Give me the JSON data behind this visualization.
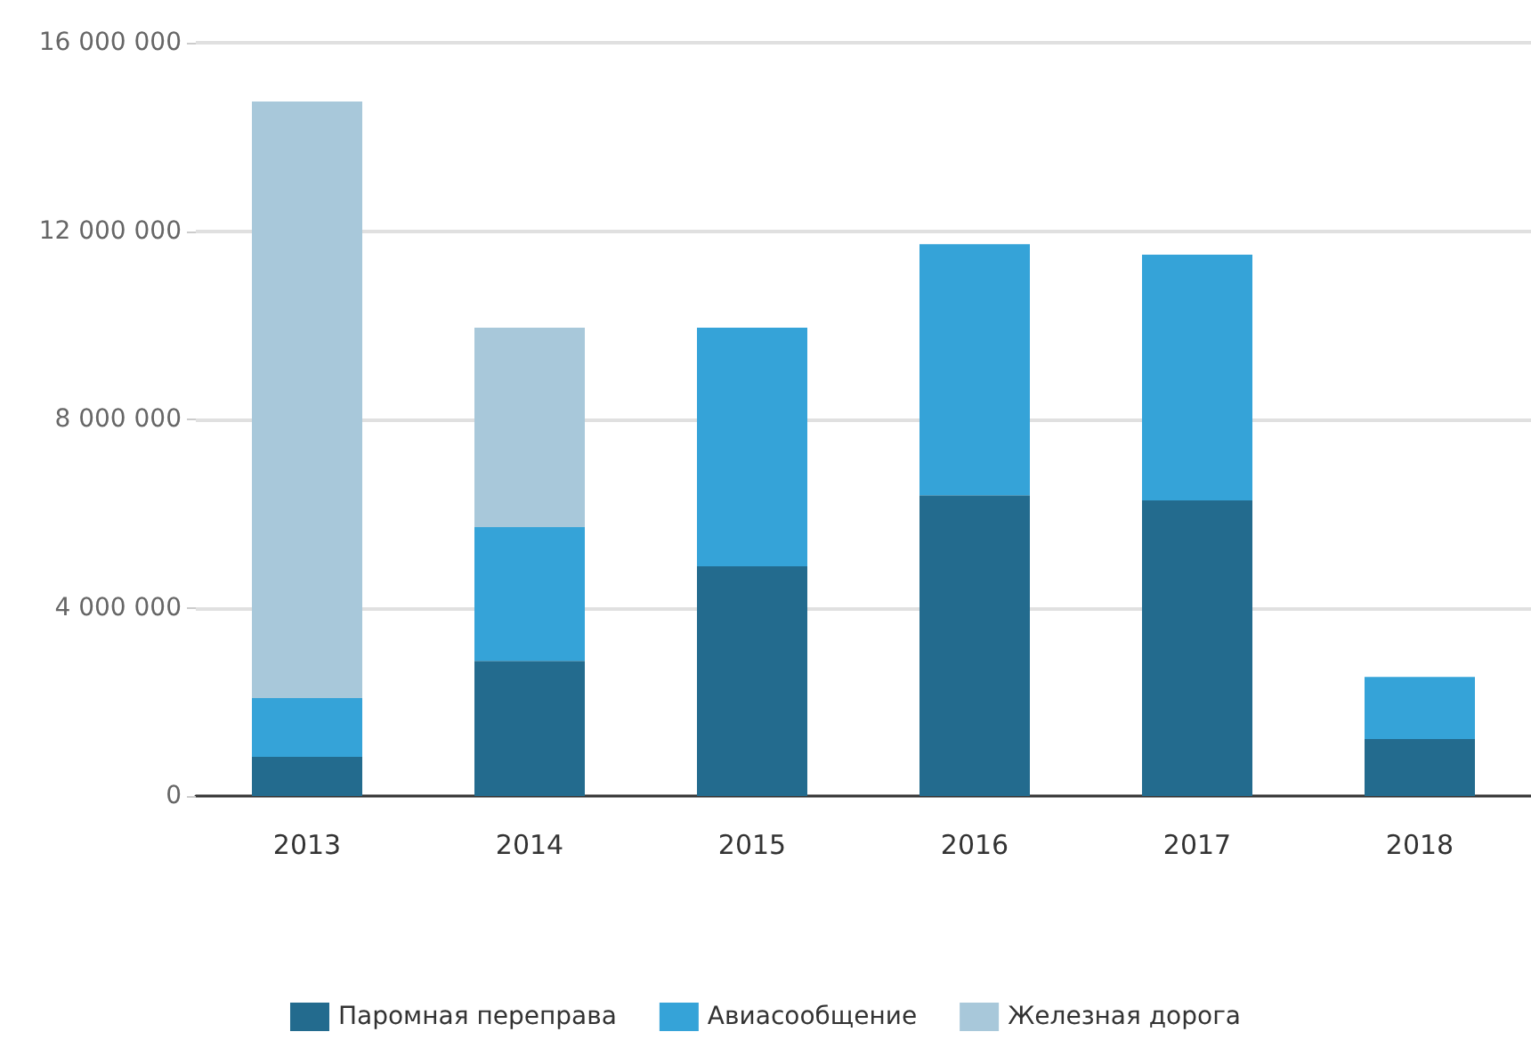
{
  "chart_data": {
    "type": "bar",
    "stacked": true,
    "categories": [
      "2013",
      "2014",
      "2015",
      "2016",
      "2017",
      "2018"
    ],
    "series": [
      {
        "name": "Паромная переправа",
        "color": "#236b8e",
        "values": [
          830000,
          2870000,
          4880000,
          6390000,
          6280000,
          1210000
        ]
      },
      {
        "name": "Авиасообщение",
        "color": "#35a3d8",
        "values": [
          1250000,
          2840000,
          5070000,
          5330000,
          5220000,
          1320000
        ]
      },
      {
        "name": "Железная дорога",
        "color": "#a8c8da",
        "values": [
          12670000,
          4240000,
          null,
          null,
          null,
          null
        ]
      }
    ],
    "ylim": [
      0,
      16000000
    ],
    "yticks": [
      {
        "value": 0,
        "label": "0"
      },
      {
        "value": 4000000,
        "label": "4 000 000"
      },
      {
        "value": 8000000,
        "label": "8 000 000"
      },
      {
        "value": 12000000,
        "label": "12 000 000"
      },
      {
        "value": 16000000,
        "label": "16 000 000"
      }
    ],
    "grid": "y",
    "legend": "bottom"
  }
}
